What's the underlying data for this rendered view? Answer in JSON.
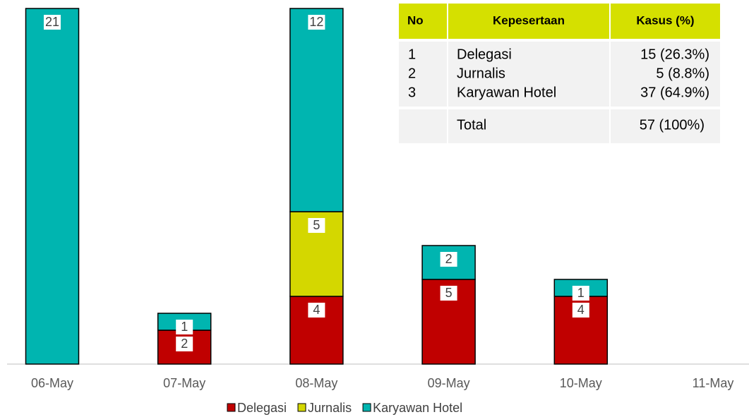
{
  "chart_data": {
    "type": "stacked-bar",
    "categories": [
      "06-May",
      "07-May",
      "08-May",
      "09-May",
      "10-May",
      "11-May"
    ],
    "series": [
      {
        "name": "Delegasi",
        "color": "#c00000",
        "values": [
          null,
          2,
          4,
          5,
          4,
          null
        ]
      },
      {
        "name": "Jurnalis",
        "color": "#d4d700",
        "values": [
          null,
          null,
          5,
          null,
          null,
          null
        ]
      },
      {
        "name": "Karyawan Hotel",
        "color": "#00b5b0",
        "values": [
          21,
          1,
          12,
          2,
          1,
          null
        ]
      }
    ],
    "ylim": [
      0,
      21
    ],
    "legend": "bottom"
  },
  "table": {
    "header": [
      "No",
      "Kepesertaan",
      "Kasus (%)"
    ],
    "rows": [
      [
        "1",
        "Delegasi",
        "15 (26.3%)"
      ],
      [
        "2",
        "Jurnalis",
        "5 (8.8%)"
      ],
      [
        "3",
        "Karyawan Hotel",
        "37 (64.9%)"
      ]
    ],
    "total": {
      "label": "Total",
      "value": "57 (100%)"
    }
  }
}
